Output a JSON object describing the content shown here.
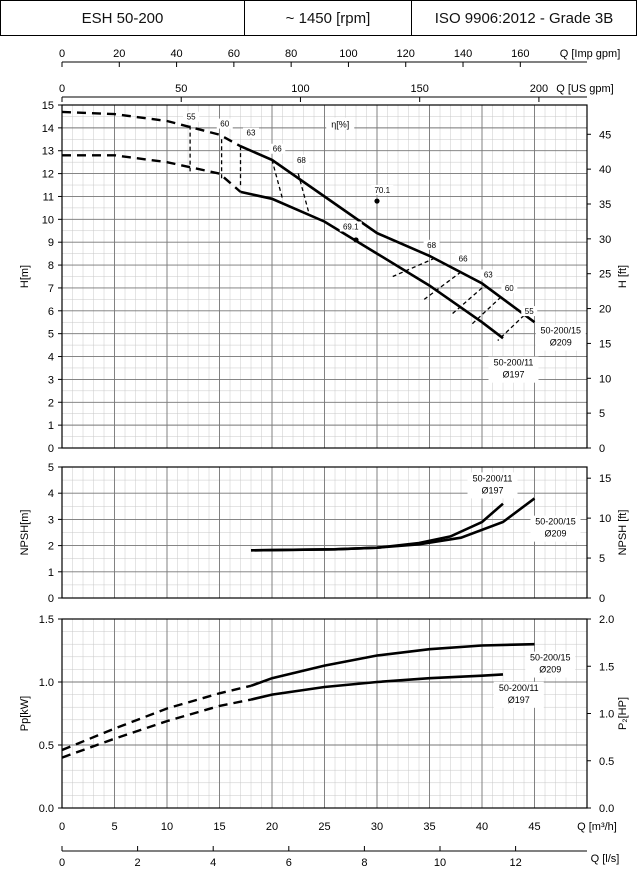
{
  "header": {
    "model": "ESH 50-200",
    "speed": "~ 1450 [rpm]",
    "standard": "ISO 9906:2012 - Grade 3B"
  },
  "chart_data": [
    {
      "type": "line",
      "panel": "head",
      "xlabel": "Q [m³/h]",
      "xlim": [
        0,
        50
      ],
      "ylabel": "H[m]",
      "ylim": [
        0,
        15
      ],
      "y2label": "H [ft]",
      "y2lim": [
        0,
        49.2
      ],
      "y2ticks": [
        0,
        5,
        10,
        15,
        20,
        25,
        30,
        35,
        40,
        45
      ],
      "efficiency_label": "η[%]",
      "extra_x_axes": [
        {
          "label": "Q [Imp gpm]",
          "ticks": [
            0,
            20,
            40,
            60,
            80,
            100,
            120,
            140,
            160
          ]
        },
        {
          "label": "Q [US gpm]",
          "ticks": [
            0,
            50,
            100,
            150,
            200
          ]
        }
      ],
      "series": [
        {
          "name": "50-200/15 Ø209",
          "line1": "50-200/15",
          "line2": "Ø209",
          "x": [
            0,
            5,
            10,
            15,
            17,
            20,
            25,
            30,
            35,
            40,
            45
          ],
          "y": [
            14.7,
            14.6,
            14.3,
            13.7,
            13.2,
            12.6,
            11.0,
            9.4,
            8.4,
            7.2,
            5.5
          ]
        },
        {
          "name": "50-200/11 Ø197",
          "line1": "50-200/11",
          "line2": "Ø197",
          "x": [
            0,
            5,
            10,
            15,
            17,
            20,
            25,
            30,
            35,
            40,
            42
          ],
          "y": [
            12.8,
            12.8,
            12.5,
            12.0,
            11.2,
            10.9,
            9.9,
            8.5,
            7.1,
            5.5,
            4.8
          ]
        }
      ],
      "efficiency_lines": [
        {
          "label": "55",
          "points": [
            [
              12.2,
              14.1
            ],
            [
              12.2,
              12.1
            ]
          ],
          "label_at": [
            12.3,
            14.4
          ]
        },
        {
          "label": "60",
          "points": [
            [
              15.2,
              13.5
            ],
            [
              15.2,
              11.7
            ]
          ],
          "label_at": [
            15.5,
            14.1
          ]
        },
        {
          "label": "63",
          "points": [
            [
              17.0,
              13.2
            ],
            [
              17.0,
              11.4
            ]
          ],
          "label_at": [
            18.0,
            13.7
          ]
        },
        {
          "label": "66",
          "points": [
            [
              20.0,
              12.6
            ],
            [
              21.0,
              10.9
            ]
          ],
          "label_at": [
            20.5,
            13.0
          ]
        },
        {
          "label": "68",
          "points": [
            [
              22.5,
              12.0
            ],
            [
              23.5,
              10.3
            ]
          ],
          "label_at": [
            22.8,
            12.5
          ]
        },
        {
          "label": "68",
          "points": [
            [
              35.5,
              8.3
            ],
            [
              31.5,
              7.5
            ]
          ],
          "label_at": [
            35.2,
            8.8
          ]
        },
        {
          "label": "66",
          "points": [
            [
              38.0,
              7.7
            ],
            [
              34.5,
              6.5
            ]
          ],
          "label_at": [
            38.2,
            8.2
          ]
        },
        {
          "label": "63",
          "points": [
            [
              40.0,
              7.0
            ],
            [
              37.0,
              5.8
            ]
          ],
          "label_at": [
            40.6,
            7.5
          ]
        },
        {
          "label": "60",
          "points": [
            [
              41.8,
              6.6
            ],
            [
              39.0,
              5.4
            ]
          ],
          "label_at": [
            42.6,
            6.9
          ]
        },
        {
          "label": "55",
          "points": [
            [
              44.0,
              5.8
            ],
            [
              41.5,
              4.7
            ]
          ],
          "label_at": [
            44.5,
            5.9
          ]
        }
      ],
      "points": [
        {
          "label": "70.1",
          "x": 30.0,
          "y": 10.8,
          "label_at": [
            30.5,
            11.2
          ]
        },
        {
          "label": "69.1",
          "x": 28.0,
          "y": 9.1,
          "label_at": [
            27.5,
            9.6
          ]
        }
      ]
    },
    {
      "type": "line",
      "panel": "npsh",
      "ylabel": "NPSH[m]",
      "ylim": [
        0,
        5
      ],
      "y2label": "NPSH [ft]",
      "y2lim": [
        0,
        16.4
      ],
      "y2ticks": [
        0,
        5,
        10,
        15
      ],
      "xlim": [
        0,
        50
      ],
      "series": [
        {
          "name": "50-200/11 Ø197",
          "line1": "50-200/11",
          "line2": "Ø197",
          "x": [
            18,
            22,
            26,
            30,
            34,
            37,
            40,
            42
          ],
          "y": [
            1.82,
            1.84,
            1.86,
            1.92,
            2.1,
            2.35,
            2.9,
            3.6
          ]
        },
        {
          "name": "50-200/15 Ø209",
          "line1": "50-200/15",
          "line2": "Ø209",
          "x": [
            18,
            22,
            26,
            30,
            34,
            38,
            42,
            45
          ],
          "y": [
            1.82,
            1.84,
            1.86,
            1.92,
            2.05,
            2.3,
            2.9,
            3.8
          ]
        }
      ]
    },
    {
      "type": "line",
      "panel": "power",
      "ylabel": "Pp[kW]",
      "ylim": [
        0,
        1.5
      ],
      "y2label": "P₂[HP]",
      "y2lim": [
        0,
        2.0
      ],
      "y2ticks": [
        0.0,
        0.5,
        1.0,
        1.5,
        2.0
      ],
      "xlabel": "Q [m³/h]",
      "xlim": [
        0,
        50
      ],
      "xticks": [
        0,
        5,
        10,
        15,
        20,
        25,
        30,
        35,
        40,
        45
      ],
      "extra_x_axes": [
        {
          "label": "Q [l/s]",
          "ticks": [
            0,
            2,
            4,
            6,
            8,
            10,
            12
          ]
        }
      ],
      "series": [
        {
          "name": "50-200/15 Ø209",
          "line1": "50-200/15",
          "line2": "Ø209",
          "x": [
            0,
            5,
            10,
            15,
            18,
            20,
            25,
            30,
            35,
            40,
            45
          ],
          "y": [
            0.46,
            0.63,
            0.79,
            0.91,
            0.97,
            1.03,
            1.13,
            1.21,
            1.26,
            1.29,
            1.3
          ]
        },
        {
          "name": "50-200/11 Ø197",
          "line1": "50-200/11",
          "line2": "Ø197",
          "x": [
            0,
            5,
            10,
            15,
            18,
            20,
            25,
            30,
            35,
            40,
            42
          ],
          "y": [
            0.4,
            0.55,
            0.69,
            0.81,
            0.86,
            0.9,
            0.96,
            1.0,
            1.03,
            1.05,
            1.06
          ]
        }
      ]
    }
  ]
}
